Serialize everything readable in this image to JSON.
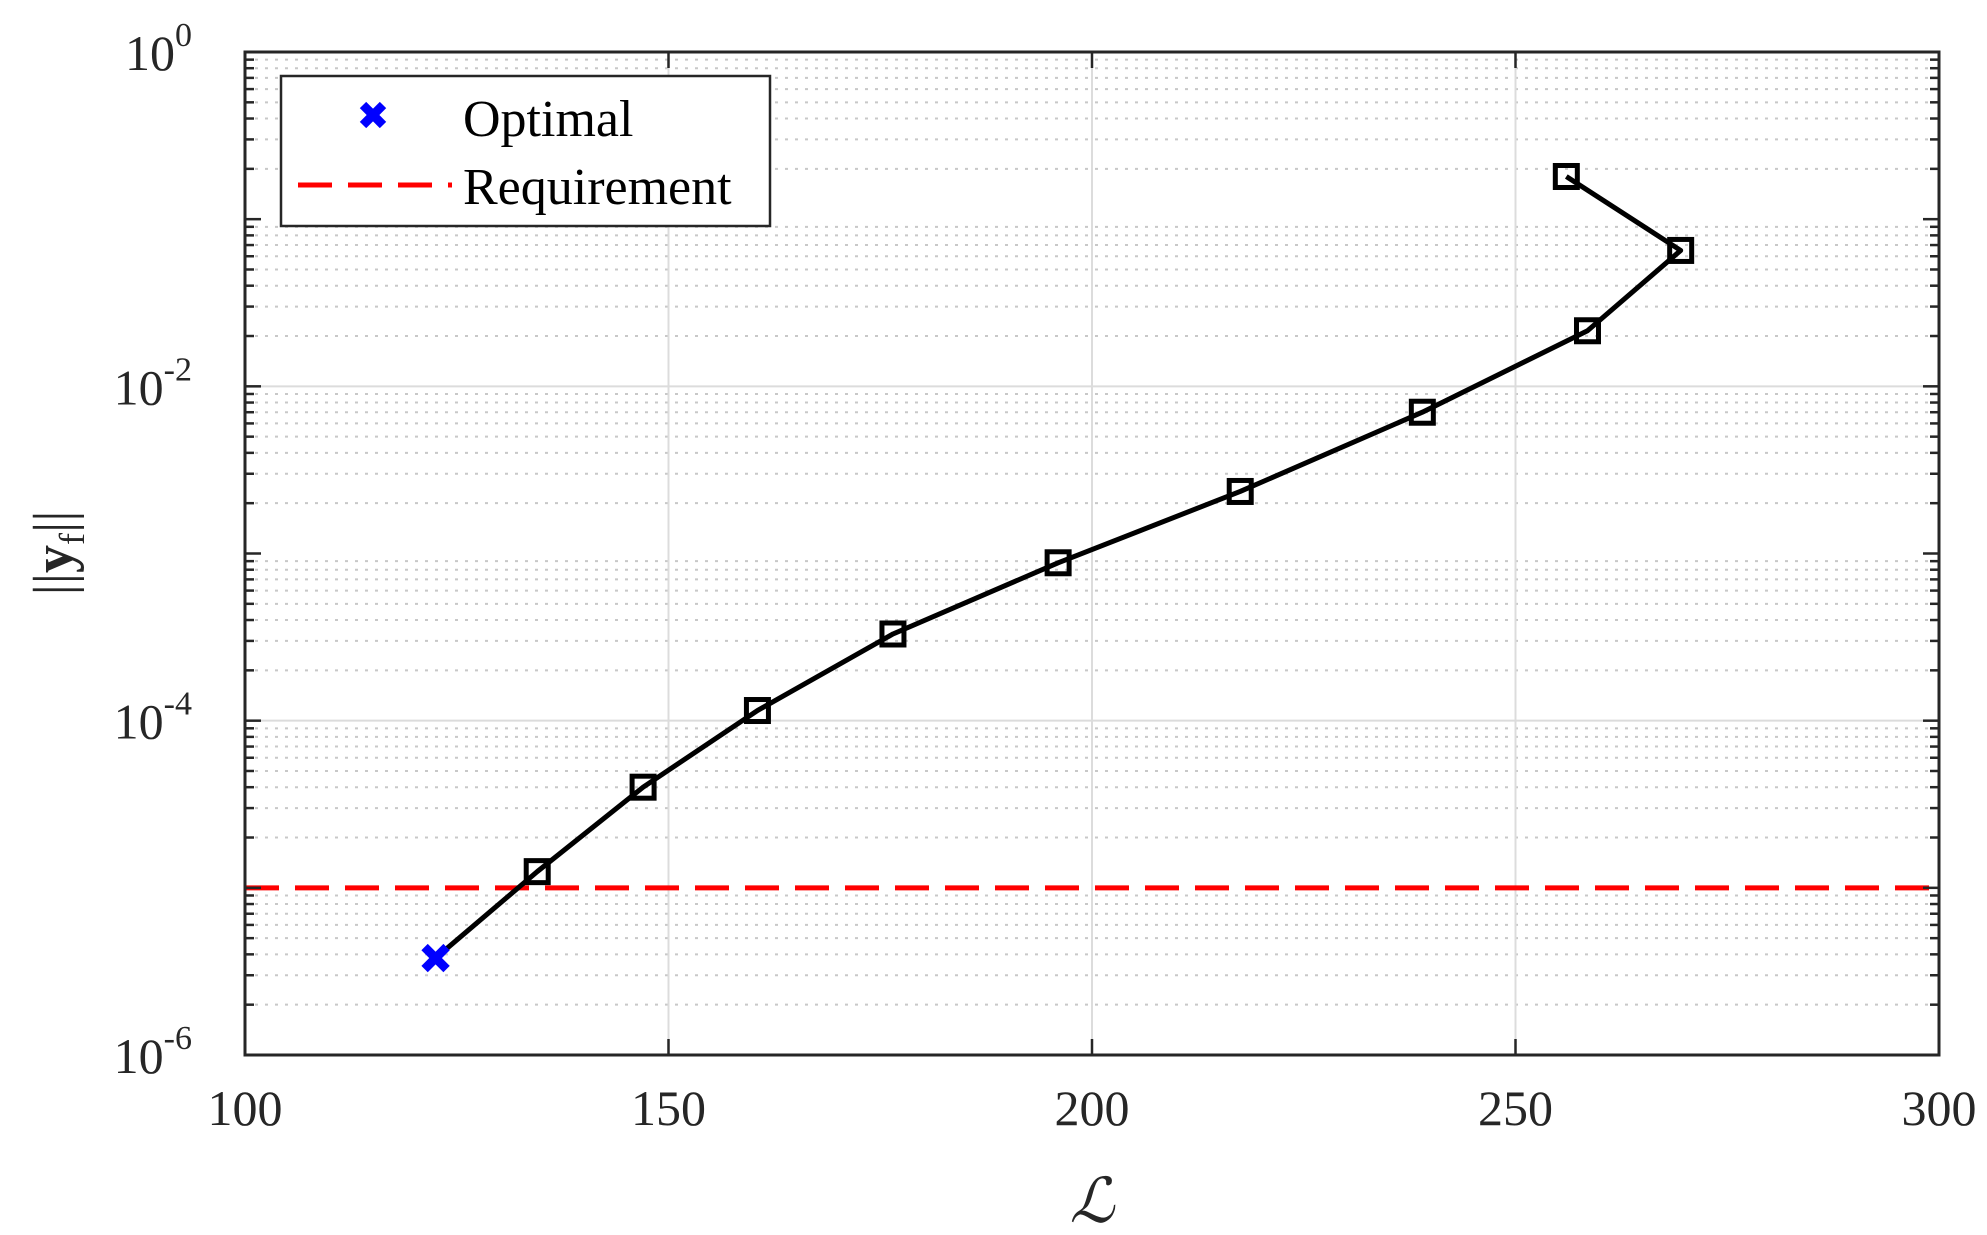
{
  "chart_data": {
    "type": "line",
    "title": "",
    "xlabel": "ℒ",
    "ylabel": "||y_f||",
    "ylabel_parts": {
      "open": "||",
      "base": "y",
      "sub": "f",
      "close": "||"
    },
    "xlim": [
      100,
      300
    ],
    "ylim": [
      1e-06,
      1
    ],
    "yscale": "log",
    "grid": {
      "major": true,
      "minor_y": true
    },
    "x_ticks": [
      {
        "value": 100,
        "label": "100"
      },
      {
        "value": 150,
        "label": "150"
      },
      {
        "value": 200,
        "label": "200"
      },
      {
        "value": 250,
        "label": "250"
      },
      {
        "value": 300,
        "label": "300"
      }
    ],
    "y_ticks": [
      {
        "value": 1e-06,
        "base": "10",
        "exp": "-6"
      },
      {
        "value": 0.0001,
        "base": "10",
        "exp": "-4"
      },
      {
        "value": 0.01,
        "base": "10",
        "exp": "-2"
      },
      {
        "value": 1,
        "base": "10",
        "exp": "0"
      }
    ],
    "legend": {
      "position": "top-left",
      "entries": [
        {
          "label": "Optimal",
          "marker": "x",
          "color": "#0000ff"
        },
        {
          "label": "Requirement",
          "line": "dashed",
          "color": "#ff0000"
        }
      ]
    },
    "series": [
      {
        "marker": "square",
        "color": "#000000",
        "points": [
          {
            "x": 122.5,
            "y": 3.8e-06
          },
          {
            "x": 134.5,
            "y": 1.25e-05
          },
          {
            "x": 147,
            "y": 4e-05
          },
          {
            "x": 160.5,
            "y": 0.000115
          },
          {
            "x": 176.5,
            "y": 0.00033
          },
          {
            "x": 196,
            "y": 0.00088
          },
          {
            "x": 217.5,
            "y": 0.00235
          },
          {
            "x": 239,
            "y": 0.007
          },
          {
            "x": 258.5,
            "y": 0.0215
          },
          {
            "x": 269.5,
            "y": 0.065
          },
          {
            "x": 256,
            "y": 0.18
          }
        ]
      }
    ],
    "optimal_point": {
      "name": "Optimal",
      "x": 122.5,
      "y": 3.8e-06,
      "color": "#0000ff"
    },
    "requirement": {
      "name": "Requirement",
      "y": 1e-05,
      "color": "#ff0000"
    }
  }
}
